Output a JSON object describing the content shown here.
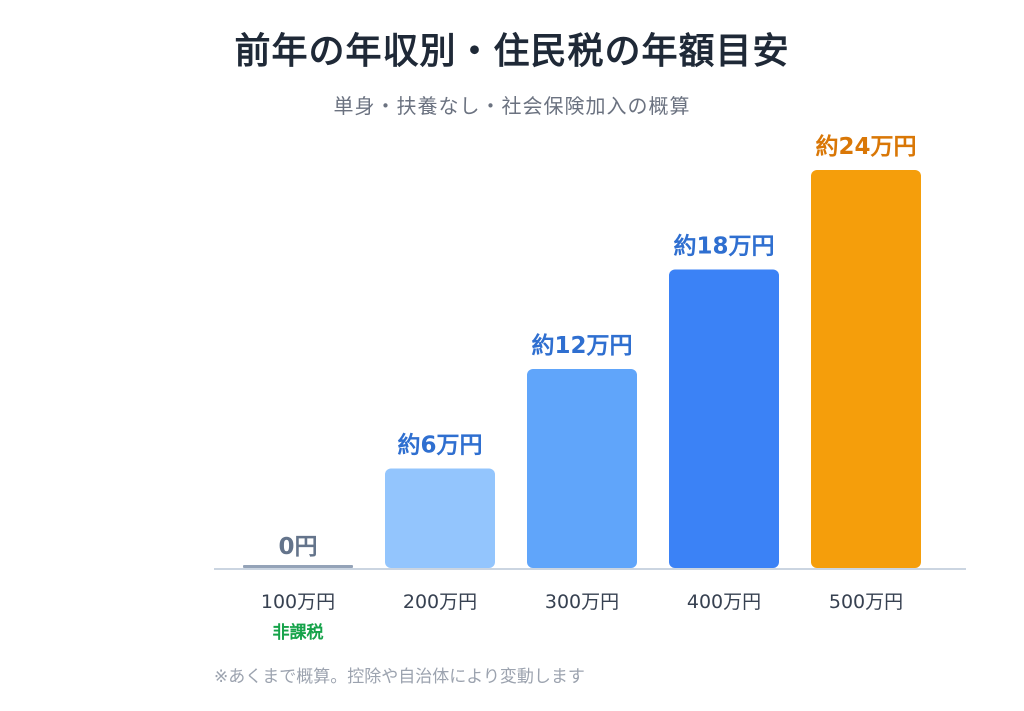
{
  "chart_data": {
    "type": "bar",
    "title": "前年の年収別・住民税の年額目安",
    "subtitle": "単身・扶養なし・社会保険加入の概算",
    "categories": [
      "100万円",
      "200万円",
      "300万円",
      "400万円",
      "500万円"
    ],
    "category_notes": [
      "非課税",
      "",
      "",
      "",
      ""
    ],
    "values": [
      0,
      6,
      12,
      18,
      24
    ],
    "value_unit": "万円",
    "value_labels": [
      "0円",
      "約6万円",
      "約12万円",
      "約18万円",
      "約24万円"
    ],
    "bar_colors": [
      "#94a3b8",
      "#93c5fd",
      "#60a5fa",
      "#3b82f6",
      "#f59e0b"
    ],
    "label_colors": [
      "#64748b",
      "#2f6fd0",
      "#2f6fd0",
      "#2f6fd0",
      "#d97706"
    ],
    "note_color": "#16a34a",
    "ylim": [
      0,
      24
    ],
    "xlabel": "",
    "ylabel": "",
    "grid": false,
    "footnote": "※あくまで概算。控除や自治体により変動します"
  }
}
